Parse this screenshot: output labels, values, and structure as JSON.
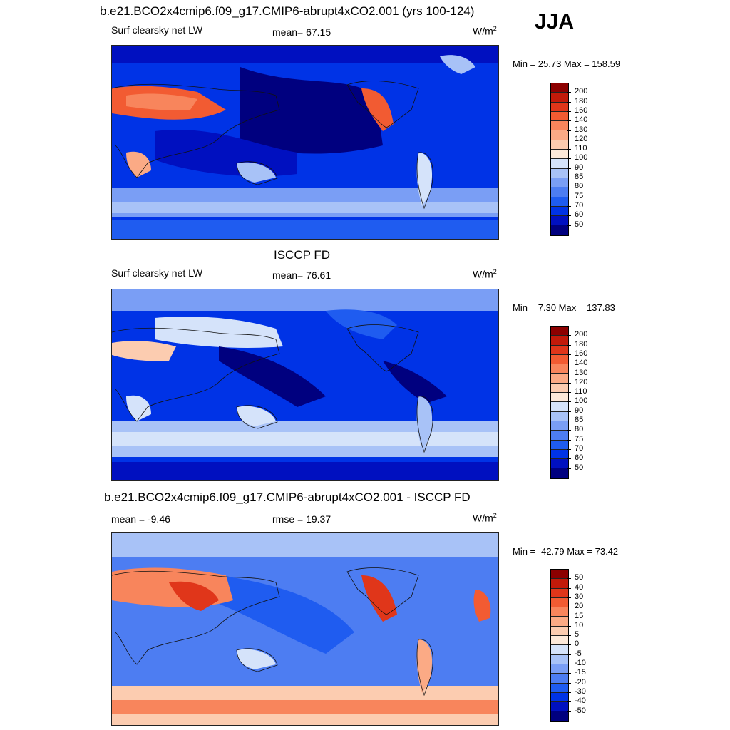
{
  "season": "JJA",
  "colors": {
    "abs_scale": [
      "#00007f",
      "#0010c0",
      "#0033e6",
      "#1f5cf0",
      "#4d7df2",
      "#7a9ef5",
      "#a8c2f7",
      "#d5e3fa",
      "#fde9d9",
      "#fcccb0",
      "#fbaa85",
      "#f8855c",
      "#f25b32",
      "#e0361a",
      "#c21a0a",
      "#8c0000"
    ],
    "diff_scale": [
      "#00007f",
      "#0010c0",
      "#0033e6",
      "#1f5cf0",
      "#4d7df2",
      "#7a9ef5",
      "#a8c2f7",
      "#d5e3fa",
      "#fde9d9",
      "#fcccb0",
      "#fbaa85",
      "#f8855c",
      "#f25b32",
      "#e0361a",
      "#c21a0a",
      "#8c0000"
    ]
  },
  "panels": [
    {
      "title": "b.e21.BCO2x4cmip6.f09_g17.CMIP6-abrupt4xCO2.001 (yrs 100-124)",
      "left_label": "Surf clearsky net LW",
      "center_label": "mean=  67.15",
      "units": "W/m",
      "units_exp": "2",
      "minmax": "Min =  25.73 Max = 158.59",
      "colorbar_labels": [
        "200",
        "180",
        "160",
        "140",
        "130",
        "120",
        "110",
        "100",
        "90",
        "85",
        "80",
        "75",
        "70",
        "60",
        "50"
      ]
    },
    {
      "title": "ISCCP FD",
      "left_label": "Surf clearsky net LW",
      "center_label": "mean=  76.61",
      "units": "W/m",
      "units_exp": "2",
      "minmax": "Min =   7.30 Max = 137.83",
      "colorbar_labels": [
        "200",
        "180",
        "160",
        "140",
        "130",
        "120",
        "110",
        "100",
        "90",
        "85",
        "80",
        "75",
        "70",
        "60",
        "50"
      ]
    },
    {
      "title": "b.e21.BCO2x4cmip6.f09_g17.CMIP6-abrupt4xCO2.001 - ISCCP FD",
      "left_label": "mean =  -9.46",
      "center_label": "rmse =  19.37",
      "units": "W/m",
      "units_exp": "2",
      "minmax": "Min = -42.79 Max =  73.42",
      "colorbar_labels": [
        "50",
        "40",
        "30",
        "20",
        "15",
        "10",
        "5",
        "0",
        "-5",
        "-10",
        "-15",
        "-20",
        "-30",
        "-40",
        "-50"
      ]
    }
  ]
}
